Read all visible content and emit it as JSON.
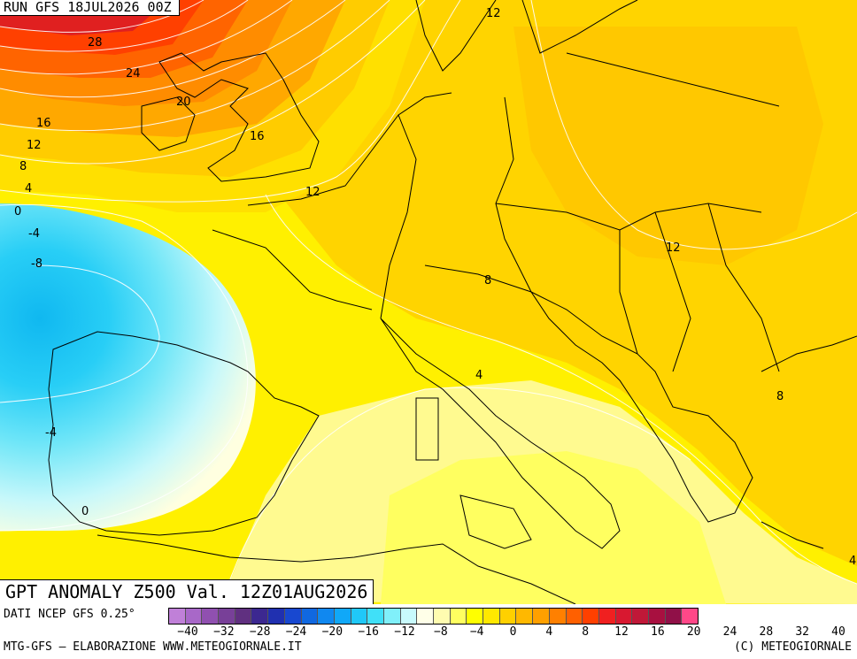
{
  "run_label": "RUN GFS 18JUL2026 00Z",
  "title": "GPT ANOMALY Z500 Val. 12Z01AUG2026",
  "source": "DATI NCEP GFS 0.25°",
  "credits_left": "MTG-GFS – ELABORAZIONE WWW.METEOGIORNALE.IT",
  "credits_right": "(C) METEOGIORNALE",
  "contour_labels": [
    {
      "text": "12"
    },
    {
      "text": "28"
    },
    {
      "text": "24"
    },
    {
      "text": "20"
    },
    {
      "text": "16"
    },
    {
      "text": "12"
    },
    {
      "text": "8"
    },
    {
      "text": "4"
    },
    {
      "text": "0"
    },
    {
      "text": "-4"
    },
    {
      "text": "-8"
    },
    {
      "text": "16"
    },
    {
      "text": "12"
    },
    {
      "text": "8"
    },
    {
      "text": "12"
    },
    {
      "text": "4"
    },
    {
      "text": "8"
    },
    {
      "text": "-4"
    },
    {
      "text": "0"
    },
    {
      "text": "4"
    }
  ],
  "scale": {
    "colors": [
      "#c080d8",
      "#a868c8",
      "#9050b0",
      "#784098",
      "#603080",
      "#3c2890",
      "#2030b0",
      "#1848d0",
      "#1068e0",
      "#1088f0",
      "#10a8f8",
      "#20c8f8",
      "#40e0f8",
      "#80f0fa",
      "#c8fafc",
      "#ffffe8",
      "#fffcb0",
      "#ffff60",
      "#ffff00",
      "#ffe800",
      "#ffd000",
      "#ffb800",
      "#ffa000",
      "#ff8000",
      "#ff6000",
      "#ff4000",
      "#f02020",
      "#d81830",
      "#c01838",
      "#a81040",
      "#901048",
      "#ff4888"
    ],
    "ticks": [
      "−40",
      "−32",
      "−28",
      "−24",
      "−20",
      "−16",
      "−12",
      "−8",
      "−4",
      "0",
      "4",
      "8",
      "12",
      "16",
      "20",
      "24",
      "28",
      "32",
      "40"
    ]
  }
}
